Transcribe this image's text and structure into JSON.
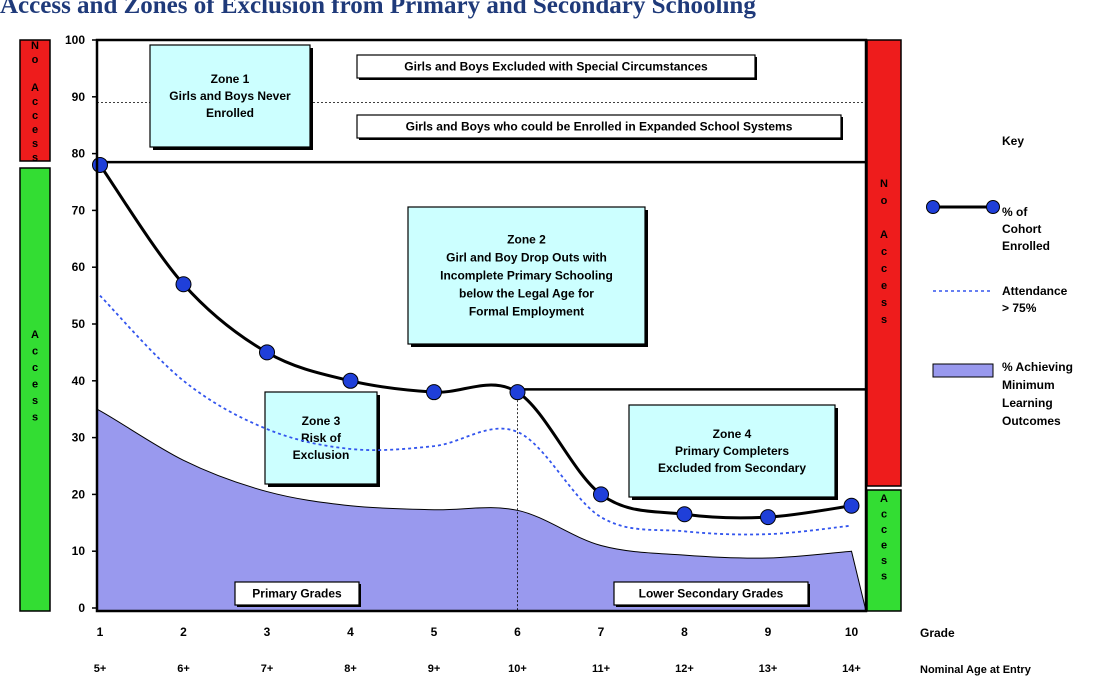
{
  "page_title": "Access and Zones of Exclusion from Primary and Secondary Schooling",
  "colors": {
    "access_green": "#33dd33",
    "no_access_red": "#ee1c1c",
    "zone_box": "#ccffff",
    "learning_fill": "#9999ee",
    "enrolled_marker": "#1f3fd9",
    "attendance_line": "#3355ee"
  },
  "chart_data": {
    "type": "line",
    "x": [
      1,
      2,
      3,
      4,
      5,
      6,
      7,
      8,
      9,
      10
    ],
    "xlabel": "Grade",
    "ylim": [
      0,
      100
    ],
    "yticks": [
      0,
      10,
      20,
      30,
      40,
      50,
      60,
      70,
      80,
      90,
      100
    ],
    "x_tick_labels": [
      "1",
      "2",
      "3",
      "4",
      "5",
      "6",
      "7",
      "8",
      "9",
      "10"
    ],
    "age_tick_labels": [
      "5+",
      "6+",
      "7+",
      "8+",
      "9+",
      "10+",
      "11+",
      "12+",
      "13+",
      "14+"
    ],
    "age_axis_label": "Nominal Age at Entry",
    "grid": false,
    "legend_position": "right",
    "legend_title": "Key",
    "series": [
      {
        "name": "% of Cohort Enrolled",
        "style": "solid-markers",
        "values": [
          78,
          57,
          45,
          40,
          38,
          38,
          20,
          16.5,
          16,
          18
        ]
      },
      {
        "name": "Attendance > 75%",
        "style": "dotted",
        "values": [
          55,
          40,
          31.5,
          28,
          28.5,
          31,
          16,
          13.5,
          13,
          14.5
        ]
      },
      {
        "name": "% Achieving Minimum Learning Outcomes",
        "style": "area",
        "values": [
          35,
          26,
          20.5,
          18,
          17.3,
          17.2,
          11,
          9.3,
          8.8,
          10
        ]
      }
    ],
    "reference_lines": [
      {
        "y": 89,
        "style": "dotted"
      },
      {
        "y": 78.5,
        "style": "solid"
      },
      {
        "y": 38.5,
        "x_from": 6,
        "x_to": 10,
        "style": "solid"
      }
    ],
    "zones": [
      {
        "lines": [
          "Zone 1",
          "Girls and Boys Never",
          "Enrolled"
        ]
      },
      {
        "lines": [
          "Zone 2",
          "Girl and Boy Drop Outs with",
          "Incomplete Primary Schooling",
          "below the Legal Age for",
          "Formal Employment"
        ]
      },
      {
        "lines": [
          "Zone 3",
          "Risk of",
          "Exclusion"
        ]
      },
      {
        "lines": [
          "Zone 4",
          "Primary Completers",
          "Excluded from Secondary"
        ]
      }
    ],
    "annotations": [
      "Girls and Boys Excluded with Special Circumstances",
      "Girls and Boys who could be Enrolled in Expanded School Systems",
      "Primary Grades",
      "Lower Secondary Grades"
    ],
    "side_bars": {
      "left_top": [
        "N",
        "o",
        " ",
        "A",
        "c",
        "c",
        "e",
        "s",
        "s"
      ],
      "left_bottom": [
        "A",
        "c",
        "c",
        "e",
        "s",
        "s"
      ],
      "right_top": [
        "N",
        "o",
        " ",
        "A",
        "c",
        "c",
        "e",
        "s",
        "s"
      ],
      "right_bottom": [
        "A",
        "c",
        "c",
        "e",
        "s",
        "s"
      ]
    },
    "legend": [
      {
        "label_lines": [
          "% of",
          "Cohort",
          "Enrolled"
        ]
      },
      {
        "label_lines": [
          "Attendance",
          "> 75%"
        ]
      },
      {
        "label_lines": [
          "% Achieving",
          "Minimum",
          "Learning",
          "Outcomes"
        ]
      }
    ]
  }
}
